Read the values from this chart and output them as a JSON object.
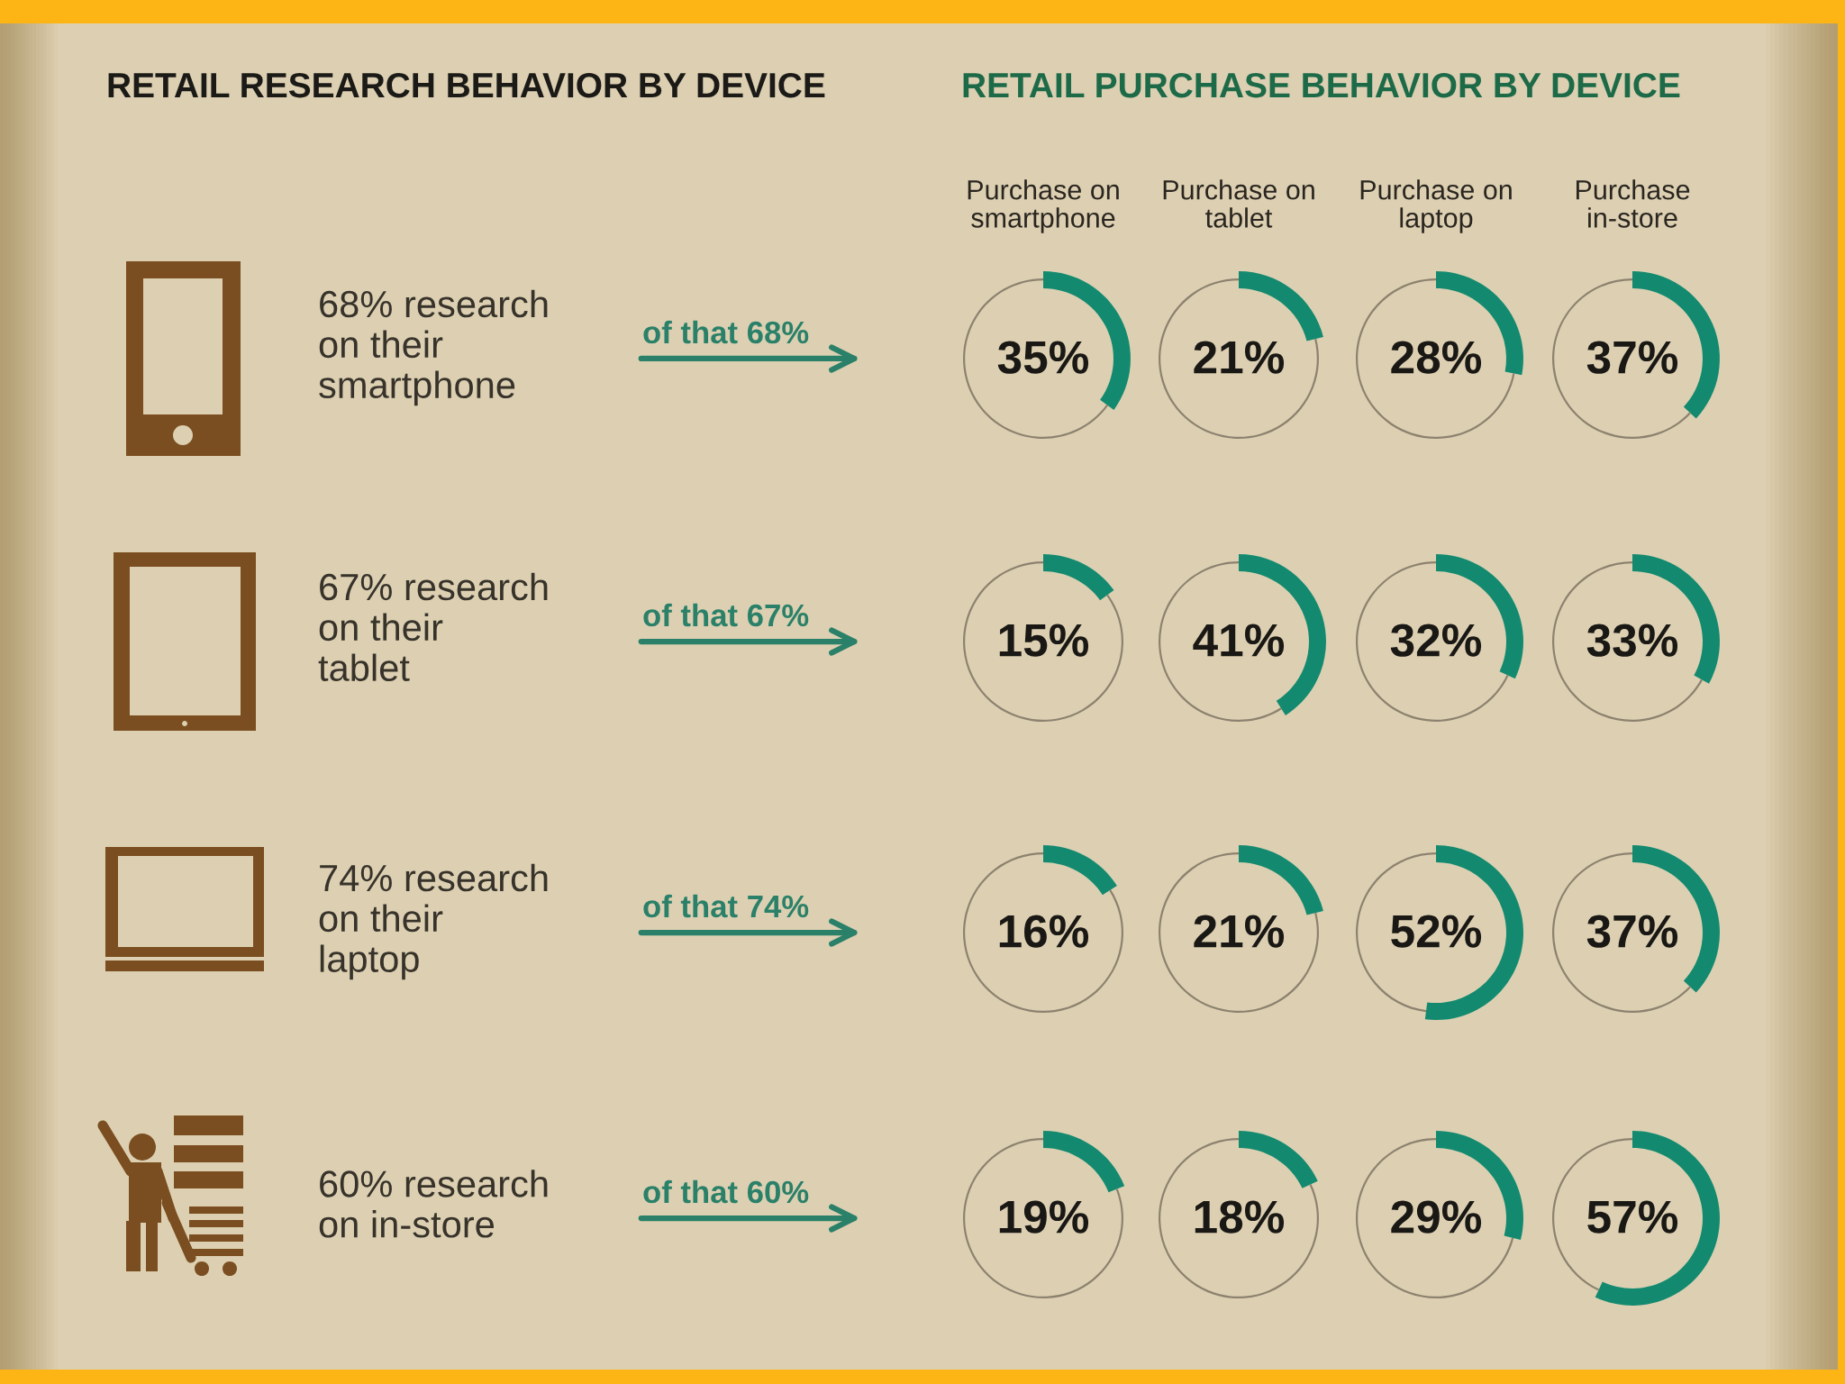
{
  "chart_data": [
    {
      "type": "other",
      "title": "RETAIL RESEARCH BEHAVIOR BY DEVICE",
      "annotations": [
        "68% research\non their\nsmartphone",
        "of that 68%",
        "67% research\non their\ntablet",
        "of that 67%",
        "74% research\non their\nlaptop",
        "of that 74%",
        "60% research\non in-store",
        "of that 60%"
      ]
    },
    {
      "type": "other",
      "title": "RETAIL PURCHASE BEHAVIOR BY DEVICE"
    },
    {
      "type": "donut",
      "title": "Purchase on\nsmartphone",
      "categories": [
        null,
        null
      ],
      "values": [
        35,
        65
      ],
      "colors": [
        "#138a6f",
        "#8c826f"
      ],
      "value_labels": [
        "35%",
        null
      ]
    },
    {
      "type": "donut",
      "title": "Purchase on\ntablet",
      "categories": [
        null,
        null
      ],
      "values": [
        21,
        79
      ],
      "colors": [
        "#138a6f",
        "#8c826f"
      ],
      "value_labels": [
        "21%",
        null
      ]
    },
    {
      "type": "donut",
      "title": "Purchase on\nlaptop",
      "categories": [
        null,
        null
      ],
      "values": [
        28,
        72
      ],
      "colors": [
        "#138a6f",
        "#8c826f"
      ],
      "value_labels": [
        "28%",
        null
      ]
    },
    {
      "type": "donut",
      "title": "Purchase\nin-store",
      "categories": [
        null,
        null
      ],
      "values": [
        37,
        63
      ],
      "colors": [
        "#138a6f",
        "#8c826f"
      ],
      "value_labels": [
        "37%",
        null
      ]
    },
    {
      "type": "donut",
      "categories": [
        null,
        null
      ],
      "values": [
        15,
        85
      ],
      "colors": [
        "#138a6f",
        "#8c826f"
      ],
      "value_labels": [
        "15%",
        null
      ]
    },
    {
      "type": "donut",
      "categories": [
        null,
        null
      ],
      "values": [
        41,
        59
      ],
      "colors": [
        "#138a6f",
        "#8c826f"
      ],
      "value_labels": [
        "41%",
        null
      ]
    },
    {
      "type": "donut",
      "categories": [
        null,
        null
      ],
      "values": [
        32,
        68
      ],
      "colors": [
        "#138a6f",
        "#8c826f"
      ],
      "value_labels": [
        "32%",
        null
      ]
    },
    {
      "type": "donut",
      "categories": [
        null,
        null
      ],
      "values": [
        33,
        67
      ],
      "colors": [
        "#138a6f",
        "#8c826f"
      ],
      "value_labels": [
        "33%",
        null
      ]
    },
    {
      "type": "donut",
      "categories": [
        null,
        null
      ],
      "values": [
        16,
        84
      ],
      "colors": [
        "#138a6f",
        "#8c826f"
      ],
      "value_labels": [
        "16%",
        null
      ]
    },
    {
      "type": "donut",
      "categories": [
        null,
        null
      ],
      "values": [
        21,
        79
      ],
      "colors": [
        "#138a6f",
        "#8c826f"
      ],
      "value_labels": [
        "21%",
        null
      ]
    },
    {
      "type": "donut",
      "categories": [
        null,
        null
      ],
      "values": [
        52,
        48
      ],
      "colors": [
        "#138a6f",
        "#8c826f"
      ],
      "value_labels": [
        "52%",
        null
      ]
    },
    {
      "type": "donut",
      "categories": [
        null,
        null
      ],
      "values": [
        37,
        63
      ],
      "colors": [
        "#138a6f",
        "#8c826f"
      ],
      "value_labels": [
        "37%",
        null
      ]
    },
    {
      "type": "donut",
      "categories": [
        null,
        null
      ],
      "values": [
        19,
        81
      ],
      "colors": [
        "#138a6f",
        "#8c826f"
      ],
      "value_labels": [
        "19%",
        null
      ]
    },
    {
      "type": "donut",
      "categories": [
        null,
        null
      ],
      "values": [
        18,
        82
      ],
      "colors": [
        "#138a6f",
        "#8c826f"
      ],
      "value_labels": [
        "18%",
        null
      ]
    },
    {
      "type": "donut",
      "categories": [
        null,
        null
      ],
      "values": [
        29,
        71
      ],
      "colors": [
        "#138a6f",
        "#8c826f"
      ],
      "value_labels": [
        "29%",
        null
      ]
    },
    {
      "type": "donut",
      "categories": [
        null,
        null
      ],
      "values": [
        57,
        43
      ],
      "colors": [
        "#138a6f",
        "#8c826f"
      ],
      "value_labels": [
        "57%",
        null
      ]
    }
  ]
}
